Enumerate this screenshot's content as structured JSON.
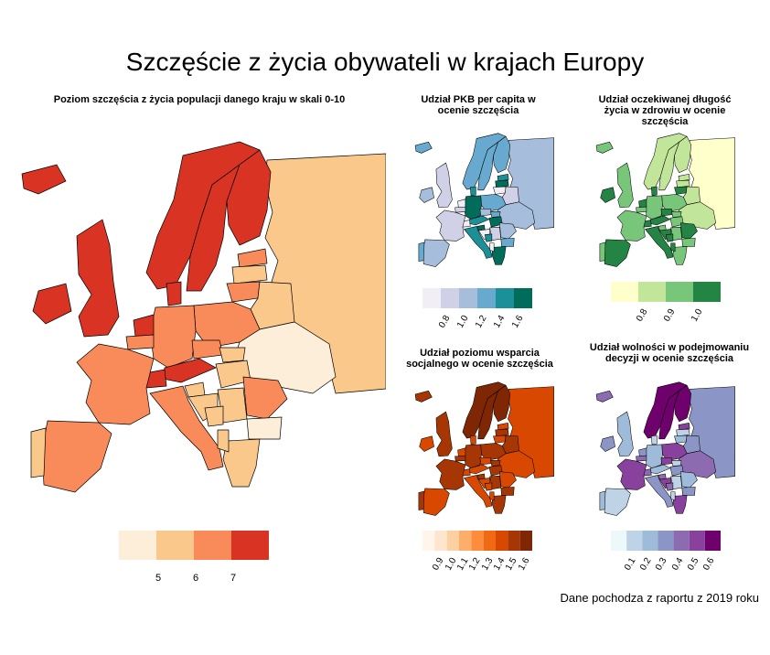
{
  "title": "Szczęście z życia obywateli w krajach Europy",
  "source": "Dane pochodza z raportu z 2019 roku",
  "main": {
    "subtitle": "Poziom szczęścia z życia populacji danego kraju w skali 0-10",
    "legend": {
      "colors": [
        "#fdeed9",
        "#fbc88b",
        "#f98a59",
        "#d93323"
      ],
      "ticks": [
        "5",
        "6",
        "7"
      ]
    }
  },
  "panels": {
    "gdp": {
      "subtitle": "Udział PKB per capita w ocenie szczęścia",
      "colors": [
        "#f1eef6",
        "#d0d1e6",
        "#a6bddb",
        "#67a9cf",
        "#1c9099",
        "#016c59"
      ],
      "ticks": [
        "0.8",
        "1.0",
        "1.2",
        "1.4",
        "1.6"
      ]
    },
    "health": {
      "subtitle": "Udział oczekiwanej długość życia w zdrowiu w ocenie szczęścia",
      "colors": [
        "#ffffcc",
        "#c2e699",
        "#78c679",
        "#238443"
      ],
      "ticks": [
        "0.8",
        "0.9",
        "1.0"
      ]
    },
    "social": {
      "subtitle": "Udział poziomu wsparcia socjalnego w ocenie szczęścia",
      "colors": [
        "#fff5eb",
        "#fee6ce",
        "#fdd0a2",
        "#fdae6b",
        "#fd8d3c",
        "#f16913",
        "#d94801",
        "#a63603",
        "#7f2704"
      ],
      "ticks": [
        "0.9",
        "1.0",
        "1.1",
        "1.2",
        "1.3",
        "1.4",
        "1.5",
        "1.6"
      ]
    },
    "freedom": {
      "subtitle": "Udział wolności w podejmowaniu decyzji w ocenie szczęścia",
      "colors": [
        "#edf8fb",
        "#bfd3e6",
        "#9ebcda",
        "#8c96c6",
        "#8c6bb1",
        "#88419d",
        "#6e016b"
      ],
      "ticks": [
        "0.1",
        "0.2",
        "0.3",
        "0.4",
        "0.5",
        "0.6"
      ]
    }
  }
}
